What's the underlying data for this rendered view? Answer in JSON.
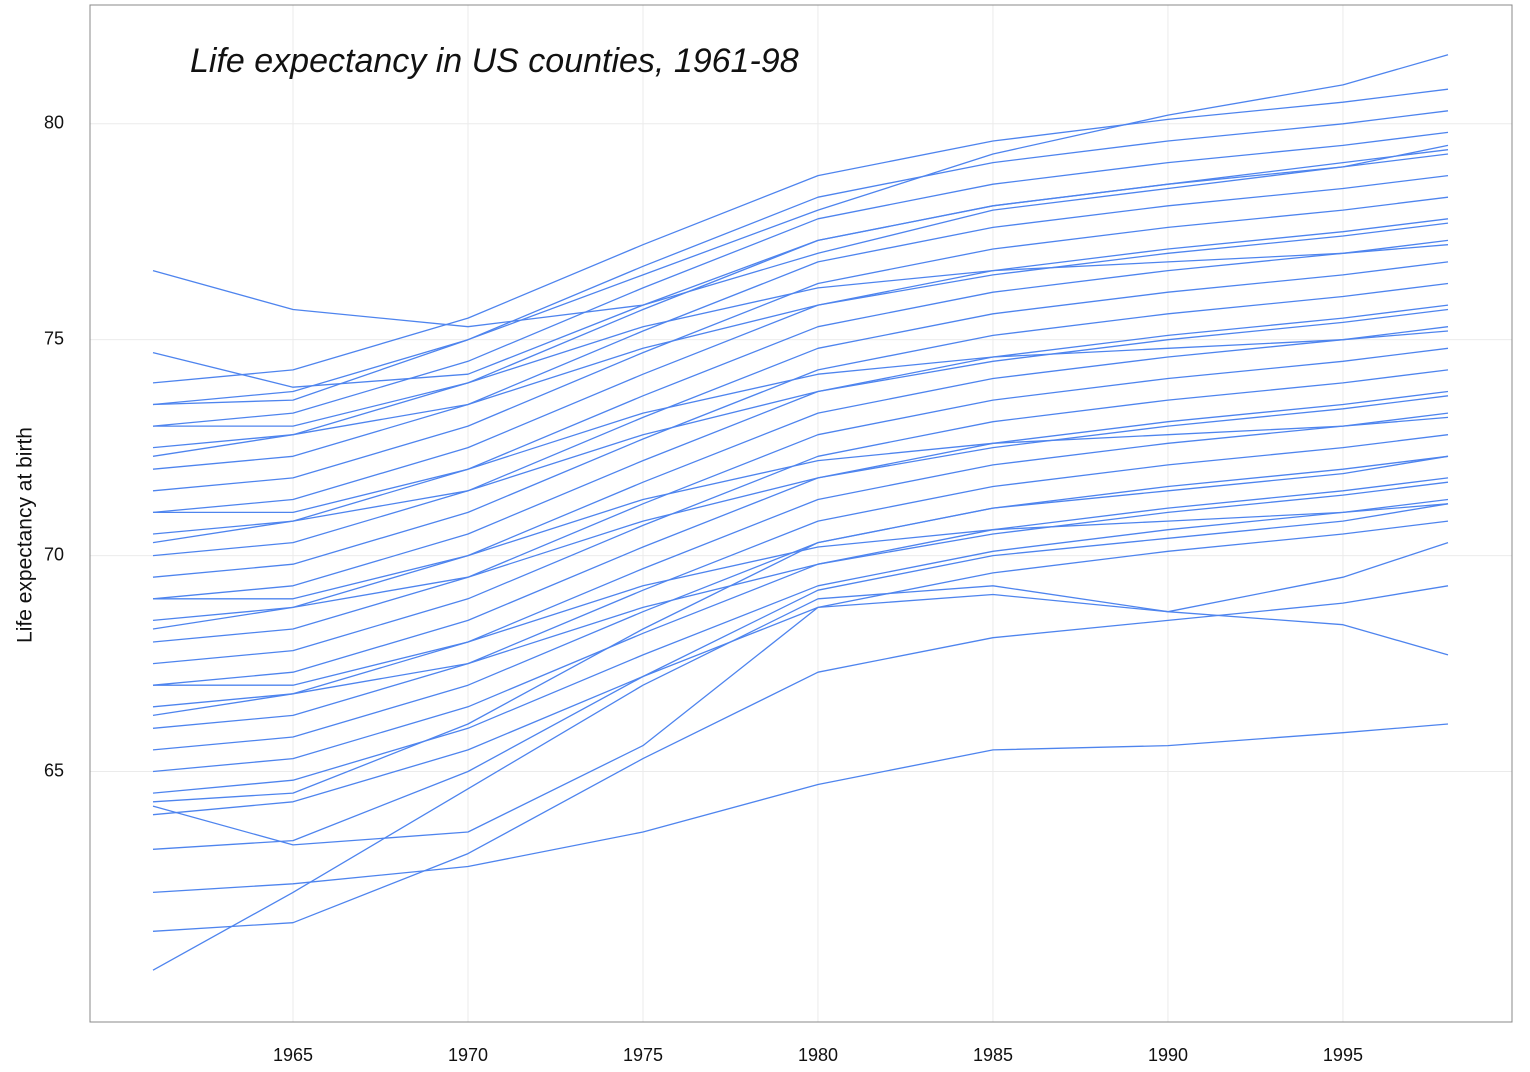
{
  "chart_data": {
    "type": "line",
    "title": "Life expectancy in US counties, 1961-98",
    "y_label": "Life expectancy at birth",
    "color": "#4e84ee",
    "grid": true,
    "x": [
      1961,
      1965,
      1970,
      1975,
      1980,
      1985,
      1990,
      1995,
      1998
    ],
    "xlim": [
      1959.2,
      1999.83
    ],
    "xticks": [
      1965,
      1970,
      1975,
      1980,
      1985,
      1990,
      1995
    ],
    "ylim": [
      59.2,
      82.75
    ],
    "yticks": [
      65,
      70,
      75,
      80
    ],
    "series": [
      {
        "values": [
          64,
          64.3,
          65.5,
          67.2,
          68.8,
          69.6,
          70.1,
          70.5,
          70.8
        ]
      },
      {
        "values": [
          64.5,
          64.8,
          66,
          67.7,
          69.3,
          70.1,
          70.6,
          71,
          71.3
        ]
      },
      {
        "values": [
          65,
          65.3,
          66.5,
          68.2,
          69.8,
          70.6,
          71.1,
          71.5,
          71.8
        ]
      },
      {
        "values": [
          65.5,
          65.8,
          67,
          68.7,
          70.3,
          71.1,
          71.6,
          72,
          72.3
        ]
      },
      {
        "values": [
          66,
          66.3,
          67.5,
          69.2,
          70.8,
          71.6,
          72.1,
          72.5,
          72.8
        ]
      },
      {
        "values": [
          66.5,
          66.8,
          68,
          69.7,
          71.3,
          72.1,
          72.6,
          73,
          73.3
        ]
      },
      {
        "values": [
          67,
          67.3,
          68.5,
          70.2,
          71.8,
          72.6,
          73.1,
          73.5,
          73.8
        ]
      },
      {
        "values": [
          67.5,
          67.8,
          69,
          70.7,
          72.3,
          73.1,
          73.6,
          74,
          74.3
        ]
      },
      {
        "values": [
          68,
          68.3,
          69.5,
          71.2,
          72.8,
          73.6,
          74.1,
          74.5,
          74.8
        ]
      },
      {
        "values": [
          68.5,
          68.8,
          70,
          71.7,
          73.3,
          74.1,
          74.6,
          75,
          75.3
        ]
      },
      {
        "values": [
          69,
          69.3,
          70.5,
          72.2,
          73.8,
          74.6,
          75.1,
          75.5,
          75.8
        ]
      },
      {
        "values": [
          69.5,
          69.8,
          71,
          72.7,
          74.3,
          75.1,
          75.6,
          76,
          76.3
        ]
      },
      {
        "values": [
          70,
          70.3,
          71.5,
          73.2,
          74.8,
          75.6,
          76.1,
          76.5,
          76.8
        ]
      },
      {
        "values": [
          70.5,
          70.8,
          72,
          73.7,
          75.3,
          76.1,
          76.6,
          77,
          77.3
        ]
      },
      {
        "values": [
          71,
          71.3,
          72.5,
          74.2,
          75.8,
          76.6,
          77.1,
          77.5,
          77.8
        ]
      },
      {
        "values": [
          71.5,
          71.8,
          73,
          74.7,
          76.3,
          77.1,
          77.6,
          78,
          78.3
        ]
      },
      {
        "values": [
          72,
          72.3,
          73.5,
          75.2,
          76.8,
          77.6,
          78.1,
          78.5,
          78.8
        ]
      },
      {
        "values": [
          72.5,
          72.8,
          74,
          75.7,
          77.3,
          78.1,
          78.6,
          79,
          79.3
        ]
      },
      {
        "values": [
          73,
          73.3,
          74.5,
          76.2,
          77.8,
          78.6,
          79.1,
          79.5,
          79.8
        ]
      },
      {
        "values": [
          73.5,
          73.8,
          75,
          76.7,
          78.3,
          79.1,
          79.6,
          80,
          80.3
        ]
      },
      {
        "values": [
          74,
          74.3,
          75.5,
          77.2,
          78.8,
          79.6,
          80.1,
          80.5,
          80.8
        ]
      },
      {
        "values": [
          61.3,
          61.5,
          63.1,
          65.3,
          67.3,
          68.1,
          68.5,
          68.9,
          69.3
        ]
      },
      {
        "values": [
          63.2,
          63.4,
          65,
          67.2,
          69.2,
          70,
          70.4,
          70.8,
          71.2
        ]
      },
      {
        "values": [
          64.3,
          64.5,
          66.1,
          68.3,
          70.3,
          71.1,
          71.5,
          71.9,
          72.3
        ]
      },
      {
        "values": [
          67,
          67,
          68,
          69.3,
          70.2,
          70.6,
          70.8,
          71,
          71.2
        ]
      },
      {
        "values": [
          69,
          69,
          70,
          71.3,
          72.2,
          72.6,
          72.8,
          73,
          73.2
        ]
      },
      {
        "values": [
          71,
          71,
          72,
          73.3,
          74.2,
          74.6,
          74.8,
          75,
          75.2
        ]
      },
      {
        "values": [
          73,
          73,
          74,
          75.3,
          76.2,
          76.6,
          76.8,
          77,
          77.2
        ]
      },
      {
        "values": [
          66.3,
          66.8,
          67.5,
          68.8,
          69.8,
          70.5,
          71,
          71.4,
          71.7
        ]
      },
      {
        "values": [
          68.3,
          68.8,
          69.5,
          70.8,
          71.8,
          72.5,
          73,
          73.4,
          73.7
        ]
      },
      {
        "values": [
          70.3,
          70.8,
          71.5,
          72.8,
          73.8,
          74.5,
          75,
          75.4,
          75.7
        ]
      },
      {
        "values": [
          72.3,
          72.8,
          73.5,
          74.8,
          75.8,
          76.5,
          77,
          77.4,
          77.7
        ]
      },
      {
        "values": [
          74.7,
          73.9,
          74.2,
          75.8,
          77.3,
          78.1,
          78.6,
          79.1,
          79.4
        ]
      },
      {
        "values": [
          62.2,
          62.4,
          62.8,
          63.6,
          64.7,
          65.5,
          65.6,
          65.9,
          66.1
        ]
      },
      {
        "values": [
          60.4,
          62.2,
          64.6,
          67,
          69,
          69.3,
          68.7,
          68.4,
          67.7
        ]
      },
      {
        "values": [
          76.6,
          75.7,
          75.3,
          75.8,
          77,
          78,
          78.5,
          79,
          79.5
        ]
      },
      {
        "values": [
          73.5,
          73.6,
          75,
          76.5,
          78,
          79.3,
          80.2,
          80.9,
          81.6
        ]
      },
      {
        "values": [
          64.2,
          63.3,
          63.6,
          65.6,
          68.8,
          69.1,
          68.7,
          69.5,
          70.3
        ]
      }
    ]
  }
}
